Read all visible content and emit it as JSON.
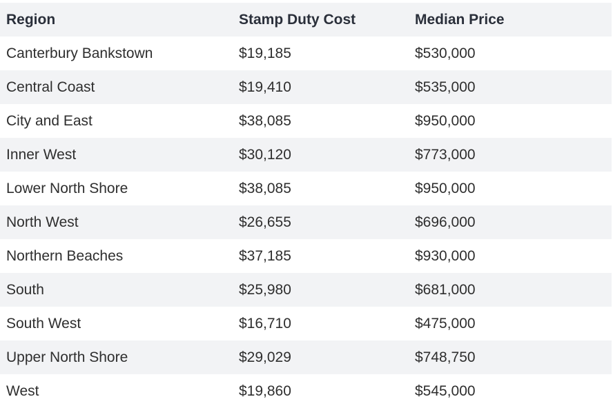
{
  "table": {
    "headers": [
      "Region",
      "Stamp Duty Cost",
      "Median Price"
    ],
    "rows": [
      [
        "Canterbury Bankstown",
        "$19,185",
        "$530,000"
      ],
      [
        "Central Coast",
        "$19,410",
        "$535,000"
      ],
      [
        "City and East",
        "$38,085",
        "$950,000"
      ],
      [
        "Inner West",
        "$30,120",
        "$773,000"
      ],
      [
        "Lower North Shore",
        "$38,085",
        "$950,000"
      ],
      [
        "North West",
        "$26,655",
        "$696,000"
      ],
      [
        "Northern Beaches",
        "$37,185",
        "$930,000"
      ],
      [
        "South",
        "$25,980",
        "$681,000"
      ],
      [
        "South West",
        "$16,710",
        "$475,000"
      ],
      [
        "Upper North Shore",
        "$29,029",
        "$748,750"
      ],
      [
        "West",
        "$19,860",
        "$545,000"
      ]
    ]
  },
  "colors": {
    "header_bg": "#f2f3f5",
    "stripe_bg": "#f2f3f5",
    "row_bg": "#ffffff",
    "text": "#2e2e2e"
  }
}
